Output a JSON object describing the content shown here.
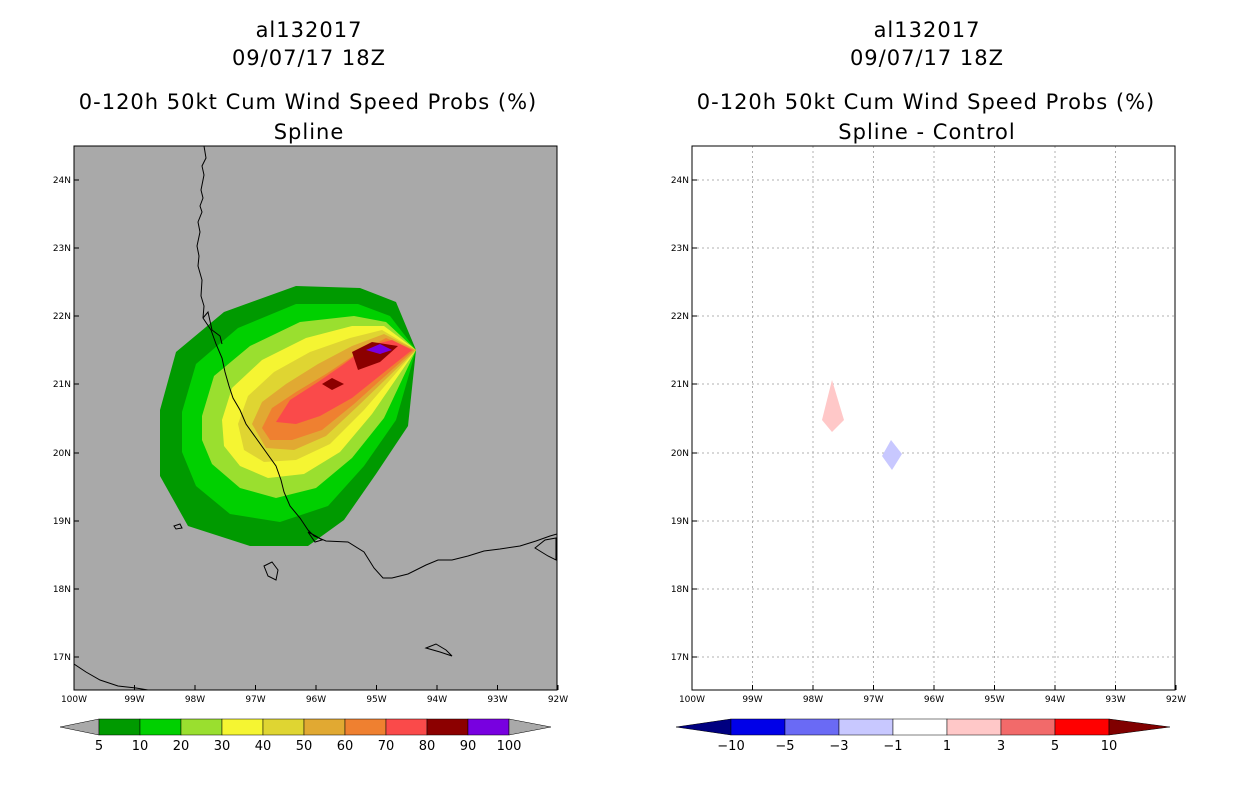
{
  "left_panel": {
    "storm_id": "al132017",
    "datetime": "09/07/17 18Z",
    "product": "0-120h 50kt Cum Wind Speed Probs (%)",
    "subtitle": "Spline",
    "background_color": "#a9a9a9",
    "lat_labels": [
      "24N",
      "23N",
      "22N",
      "21N",
      "20N",
      "19N",
      "18N",
      "17N"
    ],
    "lon_labels": [
      "100W",
      "99W",
      "98W",
      "97W",
      "96W",
      "95W",
      "94W",
      "93W",
      "92W"
    ],
    "colorbar": {
      "labels": [
        "5",
        "10",
        "20",
        "30",
        "40",
        "50",
        "60",
        "70",
        "80",
        "90",
        "100"
      ],
      "colors": [
        "#009a00",
        "#00d000",
        "#9adf2f",
        "#f5f532",
        "#dfd532",
        "#e1a932",
        "#ef8030",
        "#fa4a4a",
        "#8c0000",
        "#7800e0"
      ],
      "end_color": "#a9a9a9"
    }
  },
  "right_panel": {
    "storm_id": "al132017",
    "datetime": "09/07/17 18Z",
    "product": "0-120h 50kt Cum Wind Speed Probs (%)",
    "subtitle": "Spline - Control",
    "background_color": "#ffffff",
    "lat_labels": [
      "24N",
      "23N",
      "22N",
      "21N",
      "20N",
      "19N",
      "18N",
      "17N"
    ],
    "lon_labels": [
      "100W",
      "99W",
      "98W",
      "97W",
      "96W",
      "95W",
      "94W",
      "93W",
      "92W"
    ],
    "colorbar": {
      "labels": [
        "−10",
        "−5",
        "−3",
        "−1",
        "1",
        "3",
        "5",
        "10"
      ],
      "colors": [
        "#0000e8",
        "#6a6af5",
        "#c8c8ff",
        "#ffffff",
        "#ffc8c8",
        "#f26a6a",
        "#ff0000"
      ],
      "low_end_color": "#000080",
      "high_end_color": "#800000"
    }
  }
}
